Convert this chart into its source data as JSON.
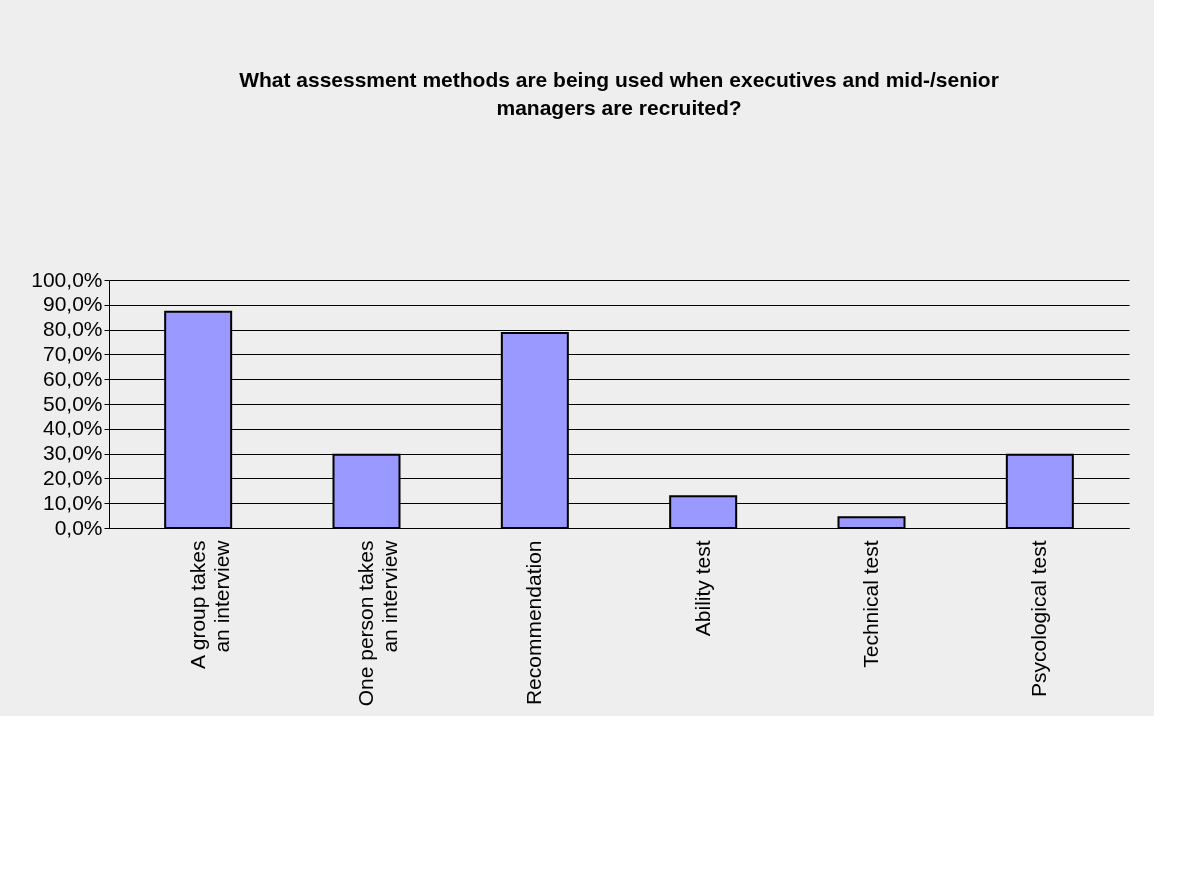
{
  "chart_data": {
    "type": "bar",
    "title": "What assessment methods are being used when executives and mid-/senior managers are recruited?",
    "categories": [
      "A group takes an interview",
      "One person takes an interview",
      "Recommendation",
      "Ability test",
      "Technical test",
      "Psycological test"
    ],
    "values": [
      87.2,
      29.5,
      78.6,
      12.8,
      4.3,
      29.5
    ],
    "color": "#9999ff",
    "ylim": [
      0,
      100
    ],
    "yticks": [
      {
        "value": 0,
        "label": "0,0%"
      },
      {
        "value": 10,
        "label": "10,0%"
      },
      {
        "value": 20,
        "label": "20,0%"
      },
      {
        "value": 30,
        "label": "30,0%"
      },
      {
        "value": 40,
        "label": "40,0%"
      },
      {
        "value": 50,
        "label": "50,0%"
      },
      {
        "value": 60,
        "label": "60,0%"
      },
      {
        "value": 70,
        "label": "70,0%"
      },
      {
        "value": 80,
        "label": "80,0%"
      },
      {
        "value": 90,
        "label": "90,0%"
      },
      {
        "value": 100,
        "label": "100,0%"
      }
    ],
    "grid": "y"
  }
}
